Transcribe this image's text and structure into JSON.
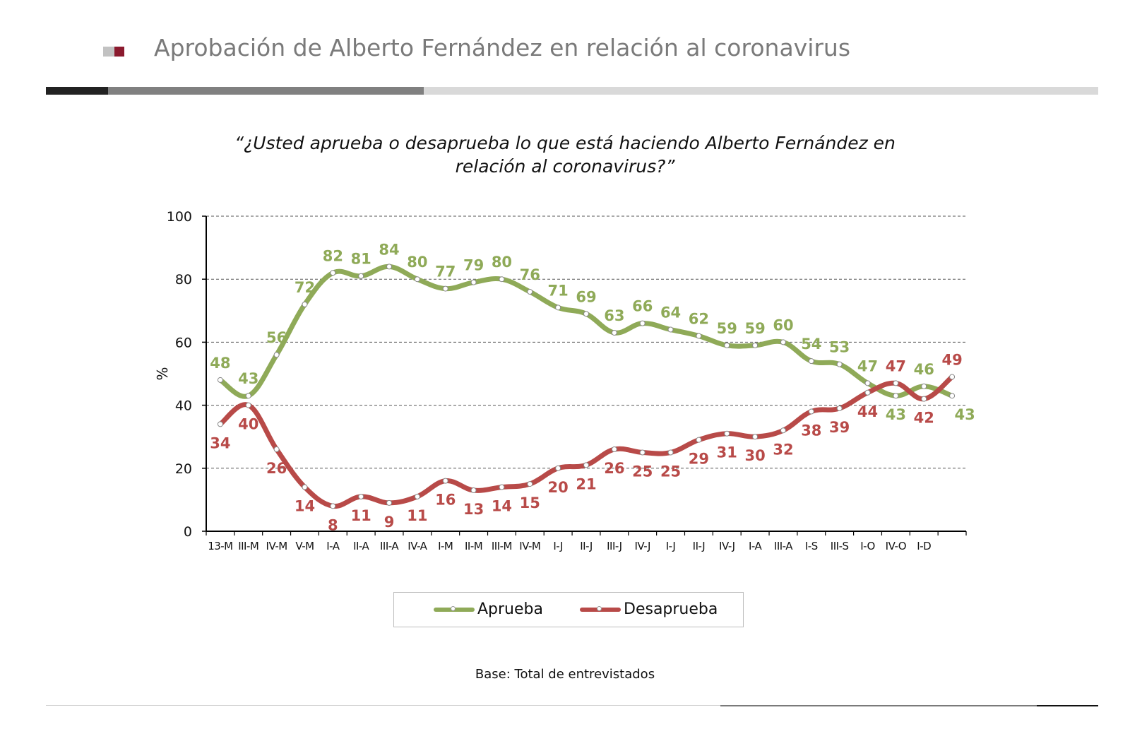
{
  "header": {
    "title": "Aprobación de Alberto Fernández en relación al coronavirus"
  },
  "colors": {
    "approve": "#8faa58",
    "disapprove": "#b84a48",
    "grid": "#555555",
    "title": "#7a7a7a",
    "brand": "#8b1a2e"
  },
  "chart_data": {
    "type": "line",
    "title": "“¿Usted aprueba o desaprueba lo que está haciendo Alberto Fernández en relación al coronavirus?”",
    "xlabel": "",
    "ylabel": "%",
    "ylim": [
      0,
      100
    ],
    "yticks": [
      0,
      20,
      40,
      60,
      80,
      100
    ],
    "grid": true,
    "legend_position": "bottom",
    "x": [
      "13-M",
      "III-M",
      "IV-M",
      "V-M",
      "I-A",
      "II-A",
      "III-A",
      "IV-A",
      "I-M",
      "II-M",
      "III-M",
      "IV-M",
      "I-J",
      "II-J",
      "III-J",
      "IV-J",
      "I-J",
      "II-J",
      "IV-J",
      "I-A",
      "III-A",
      "I-S",
      "III-S",
      "I-O",
      "IV-O",
      "I-D",
      ""
    ],
    "series": [
      {
        "name": "Aprueba",
        "values": [
          48,
          43,
          56,
          72,
          82,
          81,
          84,
          80,
          77,
          79,
          80,
          76,
          71,
          69,
          63,
          66,
          64,
          62,
          59,
          59,
          60,
          54,
          53,
          47,
          43,
          46,
          43
        ]
      },
      {
        "name": "Desaprueba",
        "values": [
          34,
          40,
          26,
          14,
          8,
          11,
          9,
          11,
          16,
          13,
          14,
          15,
          20,
          21,
          26,
          25,
          25,
          29,
          31,
          30,
          32,
          38,
          39,
          44,
          47,
          42,
          49
        ]
      }
    ],
    "footnote": "Base: Total de entrevistados"
  }
}
